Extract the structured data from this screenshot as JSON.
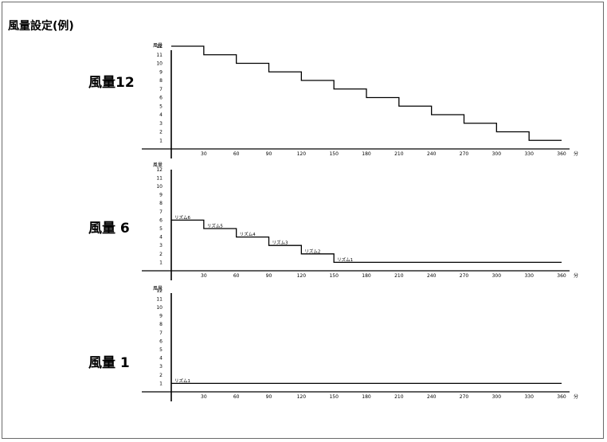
{
  "page_title": "風量設定(例)",
  "chart_data": [
    {
      "type": "line",
      "title": "風量12",
      "ylabel": "風量",
      "xlabel": "分",
      "x_ticks": [
        30,
        60,
        90,
        120,
        150,
        180,
        210,
        240,
        270,
        300,
        330,
        360
      ],
      "y_ticks": [
        1,
        2,
        3,
        4,
        5,
        6,
        7,
        8,
        9,
        10,
        11,
        12
      ],
      "xlim": [
        0,
        360
      ],
      "ylim": [
        0,
        12
      ],
      "steps": [
        {
          "x_start": 0,
          "x_end": 30,
          "y": 12
        },
        {
          "x_start": 30,
          "x_end": 60,
          "y": 11
        },
        {
          "x_start": 60,
          "x_end": 90,
          "y": 10
        },
        {
          "x_start": 90,
          "x_end": 120,
          "y": 9
        },
        {
          "x_start": 120,
          "x_end": 150,
          "y": 8
        },
        {
          "x_start": 150,
          "x_end": 180,
          "y": 7
        },
        {
          "x_start": 180,
          "x_end": 210,
          "y": 6
        },
        {
          "x_start": 210,
          "x_end": 240,
          "y": 5
        },
        {
          "x_start": 240,
          "x_end": 270,
          "y": 4
        },
        {
          "x_start": 270,
          "x_end": 300,
          "y": 3
        },
        {
          "x_start": 300,
          "x_end": 330,
          "y": 2
        },
        {
          "x_start": 330,
          "x_end": 360,
          "y": 1
        }
      ]
    },
    {
      "type": "line",
      "title": "風量 6",
      "ylabel": "風量",
      "xlabel": "分",
      "x_ticks": [
        30,
        60,
        90,
        120,
        150,
        180,
        210,
        240,
        270,
        300,
        330,
        360
      ],
      "y_ticks": [
        1,
        2,
        3,
        4,
        5,
        6,
        7,
        8,
        9,
        10,
        11,
        12
      ],
      "xlim": [
        0,
        360
      ],
      "ylim": [
        0,
        12
      ],
      "steps": [
        {
          "x_start": 0,
          "x_end": 30,
          "y": 6,
          "label": "リズム6"
        },
        {
          "x_start": 30,
          "x_end": 60,
          "y": 5,
          "label": "リズム5"
        },
        {
          "x_start": 60,
          "x_end": 90,
          "y": 4,
          "label": "リズム4"
        },
        {
          "x_start": 90,
          "x_end": 120,
          "y": 3,
          "label": "リズム3"
        },
        {
          "x_start": 120,
          "x_end": 150,
          "y": 2,
          "label": "リズム2"
        },
        {
          "x_start": 150,
          "x_end": 360,
          "y": 1,
          "label": "リズム1"
        }
      ]
    },
    {
      "type": "line",
      "title": "風量 1",
      "ylabel": "風量",
      "xlabel": "分",
      "x_ticks": [
        30,
        60,
        90,
        120,
        150,
        180,
        210,
        240,
        270,
        300,
        330,
        360
      ],
      "y_ticks": [
        1,
        2,
        3,
        4,
        5,
        6,
        7,
        8,
        9,
        10,
        11,
        12
      ],
      "xlim": [
        0,
        360
      ],
      "ylim": [
        0,
        12
      ],
      "steps": [
        {
          "x_start": 0,
          "x_end": 360,
          "y": 1,
          "label": "リズム1"
        }
      ]
    }
  ]
}
